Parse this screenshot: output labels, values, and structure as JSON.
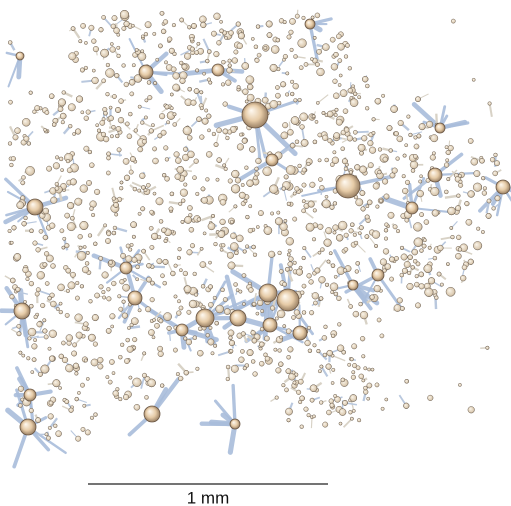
{
  "scale_bar": {
    "label": "1 mm"
  }
}
